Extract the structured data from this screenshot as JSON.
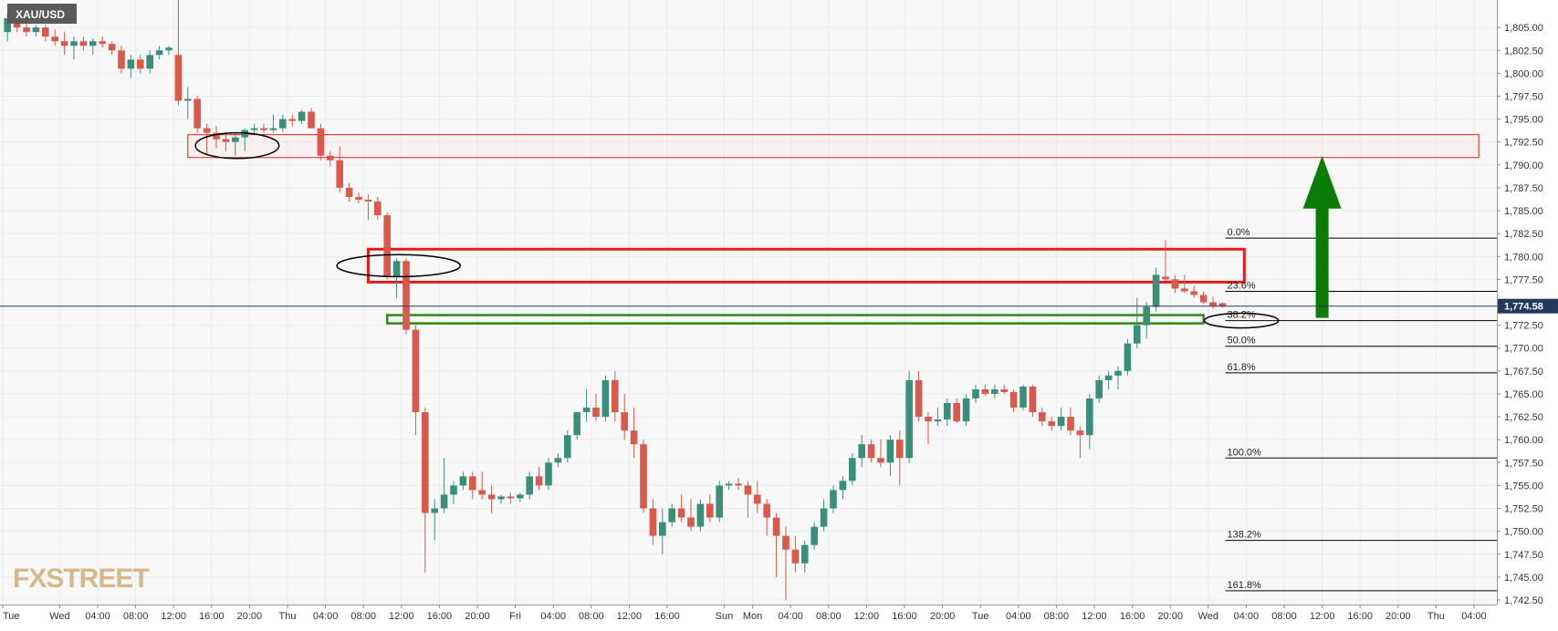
{
  "symbol": "XAU/USD",
  "logo_text": "FXSTREET",
  "current_price_label": "1,774.58",
  "colors": {
    "up": "#3a8f7b",
    "down": "#d9594c",
    "zone_red": "#e21b1b",
    "zone_green": "#2b8a12",
    "arrow": "#0b7d06",
    "price_tag": "#233a5e",
    "grid": "#ececec",
    "background": "#f8f8f8"
  },
  "chart_data": {
    "type": "candlestick",
    "ylim": [
      1742,
      1808
    ],
    "y_ticks": [
      {
        "value": 1805.0,
        "label": "1,805.00"
      },
      {
        "value": 1802.5,
        "label": "1,802.50"
      },
      {
        "value": 1800.0,
        "label": "1,800.00"
      },
      {
        "value": 1797.5,
        "label": "1,797.50"
      },
      {
        "value": 1795.0,
        "label": "1,795.00"
      },
      {
        "value": 1792.5,
        "label": "1,792.50"
      },
      {
        "value": 1790.0,
        "label": "1,790.00"
      },
      {
        "value": 1787.5,
        "label": "1,787.50"
      },
      {
        "value": 1785.0,
        "label": "1,785.00"
      },
      {
        "value": 1782.5,
        "label": "1,782.50"
      },
      {
        "value": 1780.0,
        "label": "1,780.00"
      },
      {
        "value": 1777.5,
        "label": "1,777.50"
      },
      {
        "value": 1772.5,
        "label": "1,772.50"
      },
      {
        "value": 1770.0,
        "label": "1,770.00"
      },
      {
        "value": 1767.5,
        "label": "1,767.50"
      },
      {
        "value": 1765.0,
        "label": "1,765.00"
      },
      {
        "value": 1762.5,
        "label": "1,762.50"
      },
      {
        "value": 1760.0,
        "label": "1,760.00"
      },
      {
        "value": 1757.5,
        "label": "1,757.50"
      },
      {
        "value": 1755.0,
        "label": "1,755.00"
      },
      {
        "value": 1752.5,
        "label": "1,752.50"
      },
      {
        "value": 1750.0,
        "label": "1,750.00"
      },
      {
        "value": 1747.5,
        "label": "1,747.50"
      },
      {
        "value": 1745.0,
        "label": "1,745.00"
      },
      {
        "value": 1742.5,
        "label": "1,742.50"
      }
    ],
    "x_ticks": [
      {
        "bar": 0,
        "label": "Tue"
      },
      {
        "bar": 6,
        "label": "Wed"
      },
      {
        "bar": 10,
        "label": "04:00"
      },
      {
        "bar": 14,
        "label": "08:00"
      },
      {
        "bar": 18,
        "label": "12:00"
      },
      {
        "bar": 22,
        "label": "16:00"
      },
      {
        "bar": 26,
        "label": "20:00"
      },
      {
        "bar": 30,
        "label": "Thu"
      },
      {
        "bar": 34,
        "label": "04:00"
      },
      {
        "bar": 38,
        "label": "08:00"
      },
      {
        "bar": 42,
        "label": "12:00"
      },
      {
        "bar": 46,
        "label": "16:00"
      },
      {
        "bar": 50,
        "label": "20:00"
      },
      {
        "bar": 54,
        "label": "Fri"
      },
      {
        "bar": 58,
        "label": "04:00"
      },
      {
        "bar": 62,
        "label": "08:00"
      },
      {
        "bar": 66,
        "label": "12:00"
      },
      {
        "bar": 70,
        "label": "16:00"
      },
      {
        "bar": 76,
        "label": "Sun"
      },
      {
        "bar": 79,
        "label": "Mon"
      },
      {
        "bar": 83,
        "label": "04:00"
      },
      {
        "bar": 87,
        "label": "08:00"
      },
      {
        "bar": 91,
        "label": "12:00"
      },
      {
        "bar": 95,
        "label": "16:00"
      },
      {
        "bar": 99,
        "label": "20:00"
      },
      {
        "bar": 103,
        "label": "Tue"
      },
      {
        "bar": 107,
        "label": "04:00"
      },
      {
        "bar": 111,
        "label": "08:00"
      },
      {
        "bar": 115,
        "label": "12:00"
      },
      {
        "bar": 119,
        "label": "16:00"
      },
      {
        "bar": 123,
        "label": "20:00"
      },
      {
        "bar": 127,
        "label": "Wed"
      },
      {
        "bar": 131,
        "label": "04:00"
      },
      {
        "bar": 135,
        "label": "08:00"
      },
      {
        "bar": 139,
        "label": "12:00"
      },
      {
        "bar": 143,
        "label": "16:00"
      },
      {
        "bar": 147,
        "label": "20:00"
      },
      {
        "bar": 151,
        "label": "Thu"
      },
      {
        "bar": 155,
        "label": "04:00"
      }
    ],
    "candles": [
      {
        "o": 1804.5,
        "h": 1806.5,
        "l": 1803.5,
        "c": 1806.0
      },
      {
        "o": 1806.0,
        "h": 1806.5,
        "l": 1804.5,
        "c": 1805.0
      },
      {
        "o": 1805.0,
        "h": 1805.5,
        "l": 1804.0,
        "c": 1804.5
      },
      {
        "o": 1804.5,
        "h": 1805.3,
        "l": 1804.0,
        "c": 1805.0
      },
      {
        "o": 1805.0,
        "h": 1805.3,
        "l": 1803.5,
        "c": 1804.0
      },
      {
        "o": 1804.0,
        "h": 1804.8,
        "l": 1803.0,
        "c": 1803.5
      },
      {
        "o": 1803.5,
        "h": 1804.5,
        "l": 1802.0,
        "c": 1803.0
      },
      {
        "o": 1803.0,
        "h": 1804.0,
        "l": 1801.5,
        "c": 1803.5
      },
      {
        "o": 1803.5,
        "h": 1804.0,
        "l": 1802.5,
        "c": 1803.0
      },
      {
        "o": 1803.0,
        "h": 1803.8,
        "l": 1802.0,
        "c": 1803.5
      },
      {
        "o": 1803.5,
        "h": 1804.0,
        "l": 1802.8,
        "c": 1803.2
      },
      {
        "o": 1803.2,
        "h": 1803.5,
        "l": 1802.0,
        "c": 1802.5
      },
      {
        "o": 1802.5,
        "h": 1803.0,
        "l": 1800.0,
        "c": 1800.5
      },
      {
        "o": 1800.5,
        "h": 1802.0,
        "l": 1799.5,
        "c": 1801.5
      },
      {
        "o": 1801.5,
        "h": 1802.0,
        "l": 1800.0,
        "c": 1800.5
      },
      {
        "o": 1800.5,
        "h": 1802.5,
        "l": 1800.0,
        "c": 1802.0
      },
      {
        "o": 1802.0,
        "h": 1803.0,
        "l": 1801.5,
        "c": 1802.5
      },
      {
        "o": 1802.5,
        "h": 1803.0,
        "l": 1802.0,
        "c": 1802.8
      },
      {
        "o": 1802.0,
        "h": 1808.0,
        "l": 1796.5,
        "c": 1797.0
      },
      {
        "o": 1797.0,
        "h": 1798.5,
        "l": 1795.0,
        "c": 1797.2
      },
      {
        "o": 1797.2,
        "h": 1797.5,
        "l": 1793.5,
        "c": 1794.0
      },
      {
        "o": 1794.0,
        "h": 1794.5,
        "l": 1791.2,
        "c": 1793.5
      },
      {
        "o": 1793.5,
        "h": 1794.2,
        "l": 1791.8,
        "c": 1792.8
      },
      {
        "o": 1792.8,
        "h": 1793.6,
        "l": 1791.5,
        "c": 1792.5
      },
      {
        "o": 1792.5,
        "h": 1793.5,
        "l": 1791.0,
        "c": 1793.0
      },
      {
        "o": 1793.0,
        "h": 1794.0,
        "l": 1791.5,
        "c": 1793.8
      },
      {
        "o": 1793.8,
        "h": 1794.5,
        "l": 1793.3,
        "c": 1794.0
      },
      {
        "o": 1794.0,
        "h": 1794.5,
        "l": 1793.5,
        "c": 1793.8
      },
      {
        "o": 1793.8,
        "h": 1795.5,
        "l": 1793.5,
        "c": 1794.0
      },
      {
        "o": 1794.0,
        "h": 1795.5,
        "l": 1793.6,
        "c": 1795.0
      },
      {
        "o": 1795.0,
        "h": 1795.5,
        "l": 1794.2,
        "c": 1794.8
      },
      {
        "o": 1794.8,
        "h": 1796.0,
        "l": 1794.5,
        "c": 1795.8
      },
      {
        "o": 1795.8,
        "h": 1796.2,
        "l": 1794.0,
        "c": 1794.0
      },
      {
        "o": 1794.0,
        "h": 1794.5,
        "l": 1790.5,
        "c": 1791.0
      },
      {
        "o": 1791.0,
        "h": 1791.5,
        "l": 1789.8,
        "c": 1790.5
      },
      {
        "o": 1790.5,
        "h": 1792.0,
        "l": 1787.0,
        "c": 1787.5
      },
      {
        "o": 1787.5,
        "h": 1788.0,
        "l": 1786.0,
        "c": 1786.5
      },
      {
        "o": 1786.5,
        "h": 1787.0,
        "l": 1785.8,
        "c": 1786.2
      },
      {
        "o": 1786.2,
        "h": 1786.8,
        "l": 1784.0,
        "c": 1786.0
      },
      {
        "o": 1786.0,
        "h": 1786.5,
        "l": 1784.0,
        "c": 1784.5
      },
      {
        "o": 1784.5,
        "h": 1784.8,
        "l": 1777.5,
        "c": 1777.8
      },
      {
        "o": 1777.8,
        "h": 1779.8,
        "l": 1775.5,
        "c": 1779.5
      },
      {
        "o": 1779.5,
        "h": 1779.8,
        "l": 1771.5,
        "c": 1772.0
      },
      {
        "o": 1772.0,
        "h": 1772.5,
        "l": 1760.5,
        "c": 1763.0
      },
      {
        "o": 1763.0,
        "h": 1763.5,
        "l": 1745.5,
        "c": 1752.0
      },
      {
        "o": 1752.0,
        "h": 1753.5,
        "l": 1749.0,
        "c": 1752.5
      },
      {
        "o": 1752.5,
        "h": 1758.0,
        "l": 1752.0,
        "c": 1754.0
      },
      {
        "o": 1754.0,
        "h": 1755.5,
        "l": 1753.0,
        "c": 1755.0
      },
      {
        "o": 1755.0,
        "h": 1756.5,
        "l": 1754.5,
        "c": 1756.0
      },
      {
        "o": 1756.0,
        "h": 1756.5,
        "l": 1753.5,
        "c": 1754.5
      },
      {
        "o": 1754.5,
        "h": 1756.5,
        "l": 1753.5,
        "c": 1754.0
      },
      {
        "o": 1754.0,
        "h": 1755.0,
        "l": 1752.0,
        "c": 1753.5
      },
      {
        "o": 1753.5,
        "h": 1754.0,
        "l": 1753.0,
        "c": 1753.8
      },
      {
        "o": 1753.8,
        "h": 1754.2,
        "l": 1753.0,
        "c": 1753.6
      },
      {
        "o": 1753.6,
        "h": 1754.2,
        "l": 1753.2,
        "c": 1754.0
      },
      {
        "o": 1754.0,
        "h": 1756.5,
        "l": 1753.5,
        "c": 1756.0
      },
      {
        "o": 1756.0,
        "h": 1757.0,
        "l": 1754.5,
        "c": 1755.0
      },
      {
        "o": 1755.0,
        "h": 1758.0,
        "l": 1754.5,
        "c": 1757.5
      },
      {
        "o": 1757.5,
        "h": 1758.5,
        "l": 1757.0,
        "c": 1758.0
      },
      {
        "o": 1758.0,
        "h": 1761.0,
        "l": 1757.5,
        "c": 1760.5
      },
      {
        "o": 1760.5,
        "h": 1763.0,
        "l": 1760.0,
        "c": 1763.0
      },
      {
        "o": 1763.0,
        "h": 1765.5,
        "l": 1762.0,
        "c": 1763.5
      },
      {
        "o": 1763.5,
        "h": 1765.0,
        "l": 1762.0,
        "c": 1762.5
      },
      {
        "o": 1762.5,
        "h": 1767.0,
        "l": 1762.0,
        "c": 1766.5
      },
      {
        "o": 1766.5,
        "h": 1767.5,
        "l": 1762.0,
        "c": 1763.0
      },
      {
        "o": 1763.0,
        "h": 1765.0,
        "l": 1760.0,
        "c": 1761.0
      },
      {
        "o": 1761.0,
        "h": 1763.5,
        "l": 1758.0,
        "c": 1759.5
      },
      {
        "o": 1759.5,
        "h": 1760.0,
        "l": 1752.0,
        "c": 1752.5
      },
      {
        "o": 1752.5,
        "h": 1753.5,
        "l": 1748.5,
        "c": 1749.5
      },
      {
        "o": 1749.5,
        "h": 1752.5,
        "l": 1747.5,
        "c": 1751.0
      },
      {
        "o": 1751.0,
        "h": 1753.0,
        "l": 1750.5,
        "c": 1752.5
      },
      {
        "o": 1752.5,
        "h": 1754.0,
        "l": 1751.0,
        "c": 1751.5
      },
      {
        "o": 1751.5,
        "h": 1753.5,
        "l": 1750.0,
        "c": 1750.5
      },
      {
        "o": 1750.5,
        "h": 1753.5,
        "l": 1750.0,
        "c": 1753.0
      },
      {
        "o": 1753.0,
        "h": 1754.0,
        "l": 1751.0,
        "c": 1751.5
      },
      {
        "o": 1751.5,
        "h": 1755.5,
        "l": 1751.0,
        "c": 1755.0
      },
      {
        "o": 1755.0,
        "h": 1755.5,
        "l": 1754.5,
        "c": 1755.2
      },
      {
        "o": 1755.2,
        "h": 1755.8,
        "l": 1754.5,
        "c": 1755.0
      },
      {
        "o": 1755.0,
        "h": 1755.5,
        "l": 1751.5,
        "c": 1754.0
      },
      {
        "o": 1754.0,
        "h": 1755.5,
        "l": 1752.0,
        "c": 1753.0
      },
      {
        "o": 1753.0,
        "h": 1753.5,
        "l": 1749.5,
        "c": 1751.5
      },
      {
        "o": 1751.5,
        "h": 1752.0,
        "l": 1745.0,
        "c": 1749.5
      },
      {
        "o": 1749.5,
        "h": 1750.5,
        "l": 1742.5,
        "c": 1748.0
      },
      {
        "o": 1748.0,
        "h": 1749.5,
        "l": 1745.5,
        "c": 1746.5
      },
      {
        "o": 1746.5,
        "h": 1749.0,
        "l": 1745.5,
        "c": 1748.5
      },
      {
        "o": 1748.5,
        "h": 1751.0,
        "l": 1748.0,
        "c": 1750.5
      },
      {
        "o": 1750.5,
        "h": 1753.5,
        "l": 1750.0,
        "c": 1752.5
      },
      {
        "o": 1752.5,
        "h": 1755.0,
        "l": 1752.0,
        "c": 1754.5
      },
      {
        "o": 1754.5,
        "h": 1756.0,
        "l": 1753.5,
        "c": 1755.5
      },
      {
        "o": 1755.5,
        "h": 1758.5,
        "l": 1755.0,
        "c": 1758.0
      },
      {
        "o": 1758.0,
        "h": 1760.5,
        "l": 1757.0,
        "c": 1759.5
      },
      {
        "o": 1759.5,
        "h": 1760.0,
        "l": 1757.5,
        "c": 1758.0
      },
      {
        "o": 1758.0,
        "h": 1760.0,
        "l": 1757.0,
        "c": 1757.5
      },
      {
        "o": 1757.5,
        "h": 1760.5,
        "l": 1756.0,
        "c": 1760.0
      },
      {
        "o": 1760.0,
        "h": 1761.0,
        "l": 1755.0,
        "c": 1758.0
      },
      {
        "o": 1758.0,
        "h": 1767.5,
        "l": 1757.5,
        "c": 1766.5
      },
      {
        "o": 1766.5,
        "h": 1767.5,
        "l": 1762.0,
        "c": 1762.5
      },
      {
        "o": 1762.5,
        "h": 1763.0,
        "l": 1759.5,
        "c": 1762.0
      },
      {
        "o": 1762.0,
        "h": 1763.5,
        "l": 1761.5,
        "c": 1762.2
      },
      {
        "o": 1762.2,
        "h": 1764.5,
        "l": 1761.5,
        "c": 1764.0
      },
      {
        "o": 1764.0,
        "h": 1764.5,
        "l": 1761.8,
        "c": 1762.0
      },
      {
        "o": 1762.0,
        "h": 1765.0,
        "l": 1761.5,
        "c": 1764.5
      },
      {
        "o": 1764.5,
        "h": 1766.0,
        "l": 1764.0,
        "c": 1765.5
      },
      {
        "o": 1765.5,
        "h": 1766.0,
        "l": 1764.8,
        "c": 1765.0
      },
      {
        "o": 1765.0,
        "h": 1766.0,
        "l": 1764.5,
        "c": 1765.5
      },
      {
        "o": 1765.5,
        "h": 1766.0,
        "l": 1765.0,
        "c": 1765.2
      },
      {
        "o": 1765.2,
        "h": 1765.5,
        "l": 1763.0,
        "c": 1763.5
      },
      {
        "o": 1763.5,
        "h": 1766.0,
        "l": 1763.2,
        "c": 1765.8
      },
      {
        "o": 1765.8,
        "h": 1766.0,
        "l": 1762.5,
        "c": 1763.0
      },
      {
        "o": 1763.0,
        "h": 1763.5,
        "l": 1761.5,
        "c": 1762.0
      },
      {
        "o": 1762.0,
        "h": 1762.5,
        "l": 1761.0,
        "c": 1761.5
      },
      {
        "o": 1761.5,
        "h": 1763.5,
        "l": 1761.0,
        "c": 1762.5
      },
      {
        "o": 1762.5,
        "h": 1763.5,
        "l": 1760.5,
        "c": 1761.0
      },
      {
        "o": 1761.0,
        "h": 1761.5,
        "l": 1758.0,
        "c": 1760.5
      },
      {
        "o": 1760.5,
        "h": 1765.0,
        "l": 1759.0,
        "c": 1764.5
      },
      {
        "o": 1764.5,
        "h": 1767.0,
        "l": 1764.0,
        "c": 1766.5
      },
      {
        "o": 1766.5,
        "h": 1767.5,
        "l": 1765.5,
        "c": 1767.0
      },
      {
        "o": 1767.0,
        "h": 1768.0,
        "l": 1765.5,
        "c": 1767.5
      },
      {
        "o": 1767.5,
        "h": 1771.0,
        "l": 1767.0,
        "c": 1770.5
      },
      {
        "o": 1770.5,
        "h": 1775.5,
        "l": 1770.0,
        "c": 1772.5
      },
      {
        "o": 1772.5,
        "h": 1775.0,
        "l": 1771.0,
        "c": 1774.5
      },
      {
        "o": 1774.5,
        "h": 1778.8,
        "l": 1774.0,
        "c": 1778.0
      },
      {
        "o": 1777.8,
        "h": 1781.8,
        "l": 1777.3,
        "c": 1777.5
      },
      {
        "o": 1777.5,
        "h": 1778.0,
        "l": 1776.0,
        "c": 1776.5
      },
      {
        "o": 1776.5,
        "h": 1778.0,
        "l": 1776.0,
        "c": 1776.2
      },
      {
        "o": 1776.2,
        "h": 1776.8,
        "l": 1775.5,
        "c": 1775.8
      },
      {
        "o": 1775.8,
        "h": 1776.2,
        "l": 1774.8,
        "c": 1775.0
      },
      {
        "o": 1775.0,
        "h": 1775.6,
        "l": 1774.3,
        "c": 1774.6
      },
      {
        "o": 1774.9,
        "h": 1775.0,
        "l": 1774.4,
        "c": 1774.58
      }
    ],
    "bar_count": 158,
    "fibonacci": [
      {
        "label": "0.0%",
        "price": 1782.0
      },
      {
        "label": "23.6%",
        "price": 1776.2
      },
      {
        "label": "38.2%",
        "price": 1773.0
      },
      {
        "label": "50.0%",
        "price": 1770.2
      },
      {
        "label": "61.8%",
        "price": 1767.3
      },
      {
        "label": "100.0%",
        "price": 1758.0
      },
      {
        "label": "138.2%",
        "price": 1749.0
      },
      {
        "label": "161.8%",
        "price": 1743.5
      }
    ],
    "zones": [
      {
        "name": "upper-resistance-zone",
        "kind": "thin-red",
        "bar_from": 19.5,
        "bar_to": 155.5,
        "price_low": 1790.8,
        "price_high": 1793.3
      },
      {
        "name": "mid-resistance-zone",
        "kind": "thick-red",
        "bar_from": 38.5,
        "bar_to": 130.8,
        "price_low": 1777.2,
        "price_high": 1780.8
      },
      {
        "name": "support-zone",
        "kind": "green",
        "bar_from": 40.5,
        "bar_to": 126.5,
        "price_low": 1772.7,
        "price_high": 1773.6
      }
    ],
    "ellipses": [
      {
        "name": "ellipse-upper-left",
        "bar": 24.7,
        "price": 1792.1,
        "rx_bars": 4.4,
        "ry_price": 1.4
      },
      {
        "name": "ellipse-mid-left",
        "bar": 41.7,
        "price": 1779.0,
        "rx_bars": 6.5,
        "ry_price": 1.2
      },
      {
        "name": "ellipse-38-label",
        "bar": 130.5,
        "price": 1773.0,
        "rx_bars": 3.9,
        "ry_price": 0.8
      }
    ],
    "arrow": {
      "bar": 139,
      "price_from": 1773.3,
      "price_to": 1791.0
    },
    "current_price": 1774.58
  }
}
